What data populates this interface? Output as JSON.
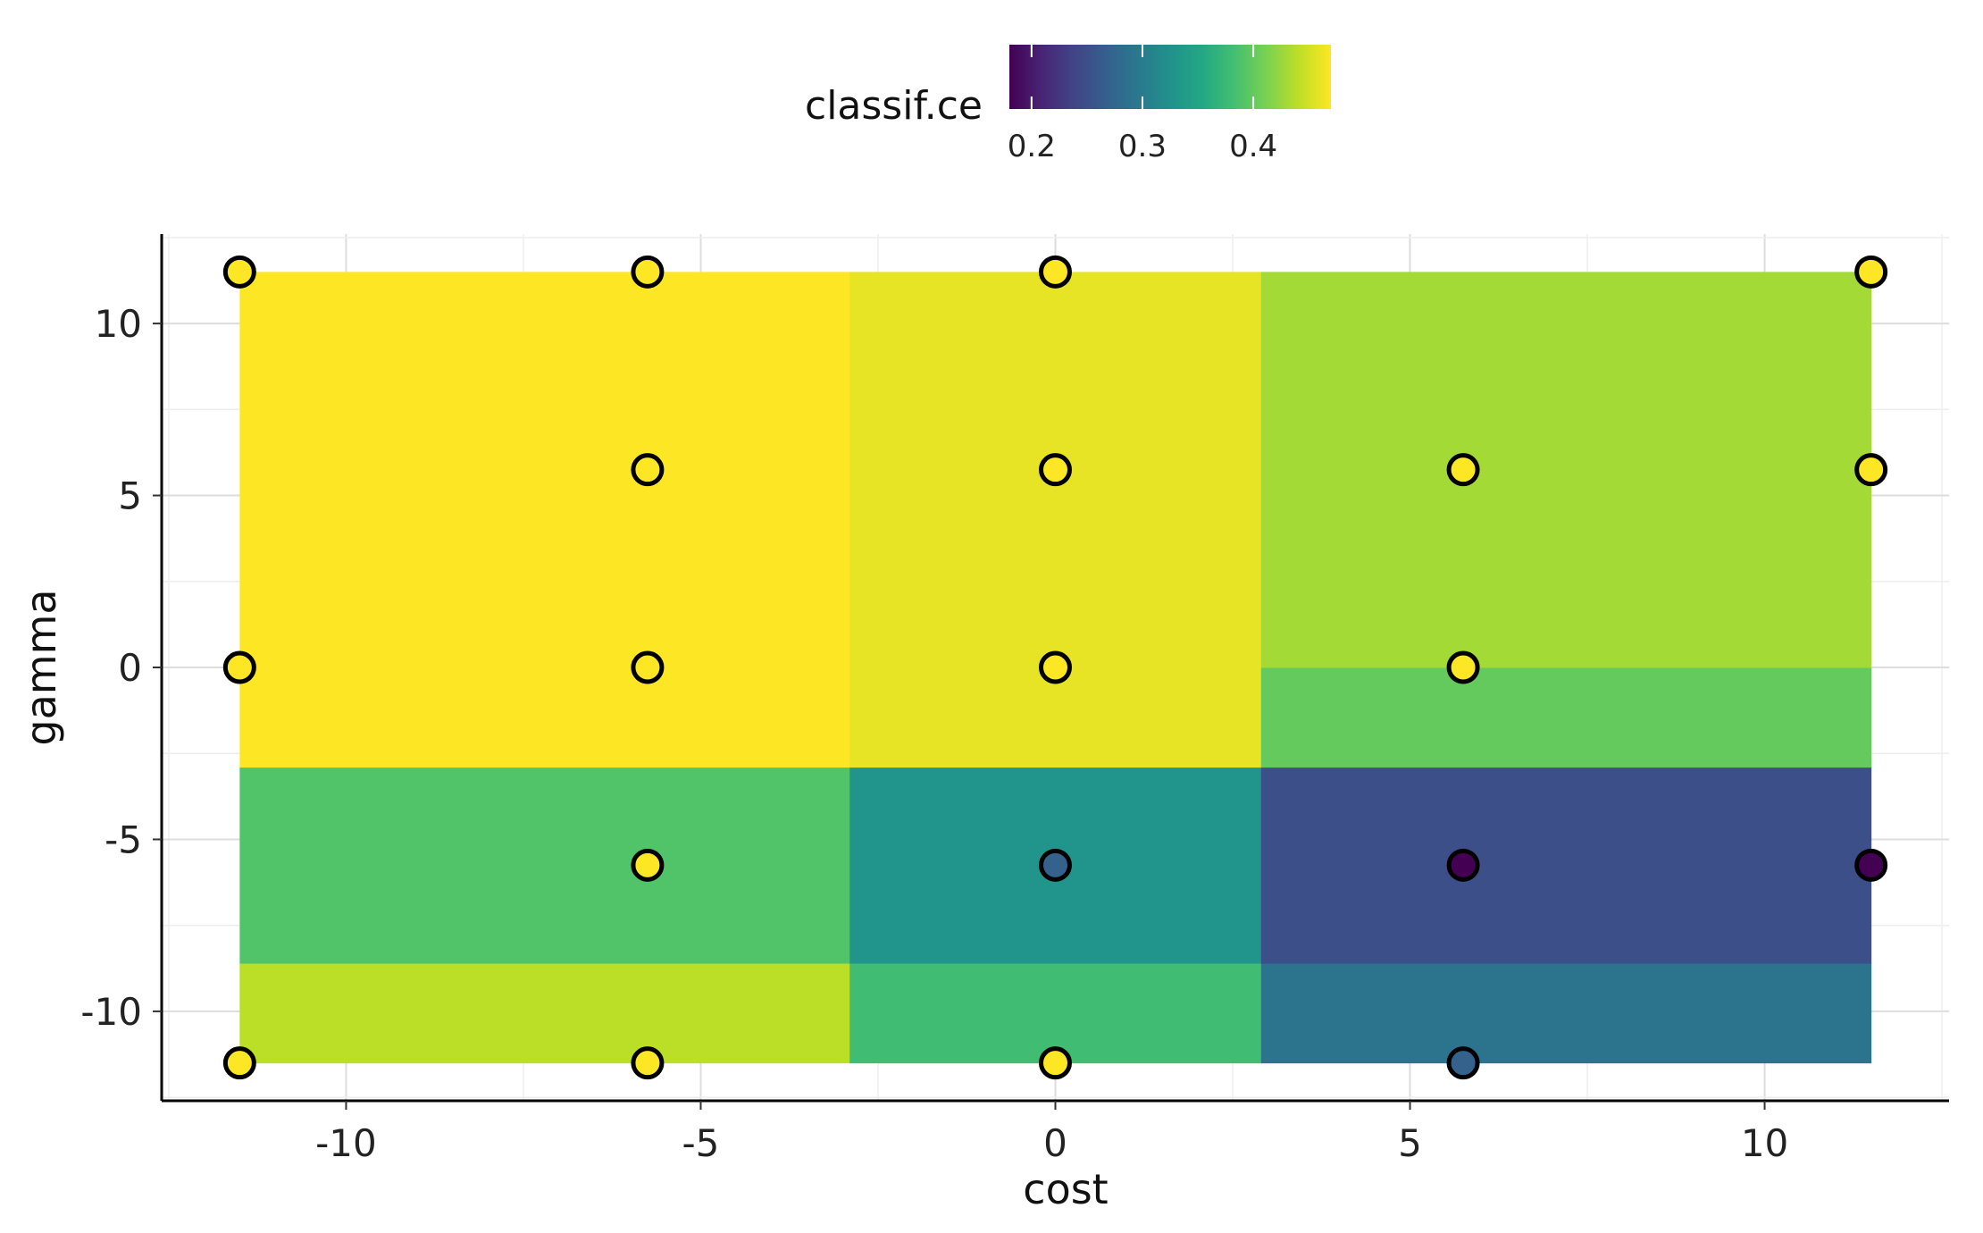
{
  "chart_data": {
    "type": "heatmap",
    "xlabel": "cost",
    "ylabel": "gamma",
    "xlim": [
      -12.6,
      12.6
    ],
    "ylim": [
      -12.6,
      12.6
    ],
    "x_ticks": [
      -10,
      -5,
      0,
      5,
      10
    ],
    "y_ticks": [
      -10,
      -5,
      0,
      5,
      10
    ],
    "grid": true,
    "legend": {
      "title": "classif.ce",
      "placement": "top",
      "colormap": "viridis",
      "range": [
        0.18,
        0.47
      ],
      "ticks": [
        0.2,
        0.3,
        0.4
      ]
    },
    "tiles": [
      {
        "x": [
          -11.5,
          -2.9
        ],
        "y": [
          -11.5,
          -8.6
        ],
        "value": 0.44
      },
      {
        "x": [
          -11.5,
          -2.9
        ],
        "y": [
          -8.6,
          -2.9
        ],
        "value": 0.39
      },
      {
        "x": [
          -11.5,
          -2.9
        ],
        "y": [
          -2.9,
          11.5
        ],
        "value": 0.47
      },
      {
        "x": [
          -2.9,
          2.9
        ],
        "y": [
          -11.5,
          -8.6
        ],
        "value": 0.38
      },
      {
        "x": [
          -2.9,
          2.9
        ],
        "y": [
          -8.6,
          -2.9
        ],
        "value": 0.33
      },
      {
        "x": [
          -2.9,
          2.9
        ],
        "y": [
          -2.9,
          11.5
        ],
        "value": 0.46
      },
      {
        "x": [
          2.9,
          11.5
        ],
        "y": [
          -11.5,
          -8.6
        ],
        "value": 0.29
      },
      {
        "x": [
          2.9,
          11.5
        ],
        "y": [
          -8.6,
          -2.9
        ],
        "value": 0.25
      },
      {
        "x": [
          2.9,
          11.5
        ],
        "y": [
          -2.9,
          0
        ],
        "value": 0.4
      },
      {
        "x": [
          2.9,
          11.5
        ],
        "y": [
          0,
          11.5
        ],
        "value": 0.43
      }
    ],
    "points": [
      {
        "x": -11.5,
        "y": 11.5,
        "value": 0.47
      },
      {
        "x": -5.75,
        "y": 11.5,
        "value": 0.47
      },
      {
        "x": 0,
        "y": 11.5,
        "value": 0.47
      },
      {
        "x": 11.5,
        "y": 11.5,
        "value": 0.47
      },
      {
        "x": -5.75,
        "y": 5.75,
        "value": 0.47
      },
      {
        "x": 0,
        "y": 5.75,
        "value": 0.47
      },
      {
        "x": 5.75,
        "y": 5.75,
        "value": 0.47
      },
      {
        "x": 11.5,
        "y": 5.75,
        "value": 0.47
      },
      {
        "x": -11.5,
        "y": 0,
        "value": 0.47
      },
      {
        "x": -5.75,
        "y": 0,
        "value": 0.47
      },
      {
        "x": 0,
        "y": 0,
        "value": 0.47
      },
      {
        "x": 5.75,
        "y": 0,
        "value": 0.47
      },
      {
        "x": -5.75,
        "y": -5.75,
        "value": 0.47
      },
      {
        "x": 0,
        "y": -5.75,
        "value": 0.27
      },
      {
        "x": 5.75,
        "y": -5.75,
        "value": 0.18
      },
      {
        "x": 11.5,
        "y": -5.75,
        "value": 0.18
      },
      {
        "x": -11.5,
        "y": -11.5,
        "value": 0.47
      },
      {
        "x": -5.75,
        "y": -11.5,
        "value": 0.47
      },
      {
        "x": 0,
        "y": -11.5,
        "value": 0.47
      },
      {
        "x": 5.75,
        "y": -11.5,
        "value": 0.27
      }
    ]
  }
}
